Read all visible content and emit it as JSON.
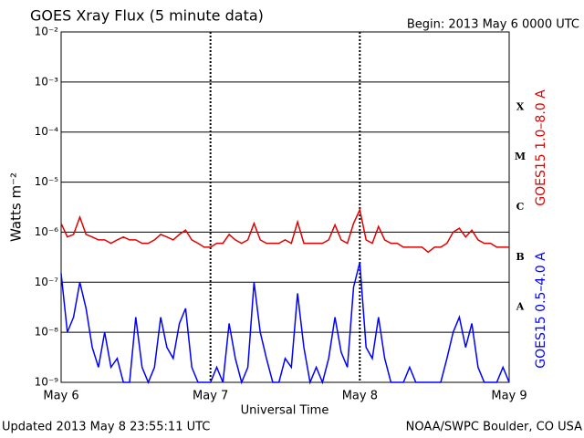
{
  "chart_data": {
    "type": "line",
    "title": "GOES Xray Flux (5 minute data)",
    "begin": "Begin:  2013 May 6 0000 UTC",
    "ylabel": "Watts m⁻²",
    "xlabel": "Universal Time",
    "updated": "Updated 2013 May  8 23:55:11 UTC",
    "source": "NOAA/SWPC Boulder, CO USA",
    "log_scale": true,
    "grid": true,
    "xlim": [
      0,
      72
    ],
    "xticks": [
      {
        "value": 0,
        "label": "May 6"
      },
      {
        "value": 24,
        "label": "May 7"
      },
      {
        "value": 48,
        "label": "May 8"
      },
      {
        "value": 72,
        "label": "May 9"
      }
    ],
    "ylim": [
      1e-09,
      0.01
    ],
    "yticks": [
      {
        "value": 1e-09,
        "label": "10⁻⁹"
      },
      {
        "value": 1e-08,
        "label": "10⁻⁸"
      },
      {
        "value": 1e-07,
        "label": "10⁻⁷"
      },
      {
        "value": 1e-06,
        "label": "10⁻⁶"
      },
      {
        "value": 1e-05,
        "label": "10⁻⁵"
      },
      {
        "value": 0.0001,
        "label": "10⁻⁴"
      },
      {
        "value": 0.001,
        "label": "10⁻³"
      },
      {
        "value": 0.01,
        "label": "10⁻²"
      }
    ],
    "flare_classes": [
      {
        "label": "X",
        "value": 0.0001
      },
      {
        "label": "M",
        "value": 1e-05
      },
      {
        "label": "C",
        "value": 1e-06
      },
      {
        "label": "B",
        "value": 1e-07
      },
      {
        "label": "A",
        "value": 1e-08
      }
    ],
    "x": [
      0,
      1,
      2,
      3,
      4,
      5,
      6,
      7,
      8,
      9,
      10,
      11,
      12,
      13,
      14,
      15,
      16,
      17,
      18,
      19,
      20,
      21,
      22,
      23,
      24,
      25,
      26,
      27,
      28,
      29,
      30,
      31,
      32,
      33,
      34,
      35,
      36,
      37,
      38,
      39,
      40,
      41,
      42,
      43,
      44,
      45,
      46,
      47,
      48,
      49,
      50,
      51,
      52,
      53,
      54,
      55,
      56,
      57,
      58,
      59,
      60,
      61,
      62,
      63,
      64,
      65,
      66,
      67,
      68,
      69,
      70,
      71,
      72
    ],
    "series": [
      {
        "name": "GOES15 1.0–8.0 A",
        "color": "#e00000",
        "values": [
          1.5e-06,
          8e-07,
          9e-07,
          2e-06,
          9e-07,
          8e-07,
          7e-07,
          7e-07,
          6e-07,
          7e-07,
          8e-07,
          7e-07,
          7e-07,
          6e-07,
          6e-07,
          7e-07,
          9e-07,
          8e-07,
          7e-07,
          9e-07,
          1.1e-06,
          7e-07,
          6e-07,
          5e-07,
          5e-07,
          6e-07,
          6e-07,
          9e-07,
          7e-07,
          6e-07,
          7e-07,
          1.5e-06,
          7e-07,
          6e-07,
          6e-07,
          6e-07,
          7e-07,
          6e-07,
          1.6e-06,
          6e-07,
          6e-07,
          6e-07,
          6e-07,
          7e-07,
          1.4e-06,
          7e-07,
          6e-07,
          1.5e-06,
          2.8e-06,
          7e-07,
          6e-07,
          1.3e-06,
          7e-07,
          6e-07,
          6e-07,
          5e-07,
          5e-07,
          5e-07,
          5e-07,
          4e-07,
          5e-07,
          5e-07,
          6e-07,
          1e-06,
          1.2e-06,
          8e-07,
          1.1e-06,
          7e-07,
          6e-07,
          6e-07,
          5e-07,
          5e-07,
          5e-07
        ]
      },
      {
        "name": "GOES15 0.5–4.0 A",
        "color": "#0000ff",
        "values": [
          1.5e-07,
          1e-08,
          2e-08,
          1e-07,
          3e-08,
          5e-09,
          2e-09,
          1e-08,
          2e-09,
          3e-09,
          1e-09,
          1e-09,
          2e-08,
          2e-09,
          1e-09,
          2e-09,
          2e-08,
          5e-09,
          3e-09,
          1.5e-08,
          3e-08,
          2e-09,
          1e-09,
          1e-09,
          1e-09,
          2e-09,
          1e-09,
          1.5e-08,
          3e-09,
          1e-09,
          2e-09,
          1e-07,
          1e-08,
          3e-09,
          1e-09,
          1e-09,
          3e-09,
          2e-09,
          6e-08,
          5e-09,
          1e-09,
          2e-09,
          1e-09,
          3e-09,
          2e-08,
          4e-09,
          2e-09,
          8e-08,
          2.5e-07,
          5e-09,
          3e-09,
          2e-08,
          3e-09,
          1e-09,
          1e-09,
          1e-09,
          2e-09,
          1e-09,
          1e-09,
          1e-09,
          1e-09,
          1e-09,
          3e-09,
          1e-08,
          2e-08,
          5e-09,
          1.5e-08,
          2e-09,
          1e-09,
          1e-09,
          1e-09,
          2e-09,
          1e-09
        ]
      }
    ]
  }
}
